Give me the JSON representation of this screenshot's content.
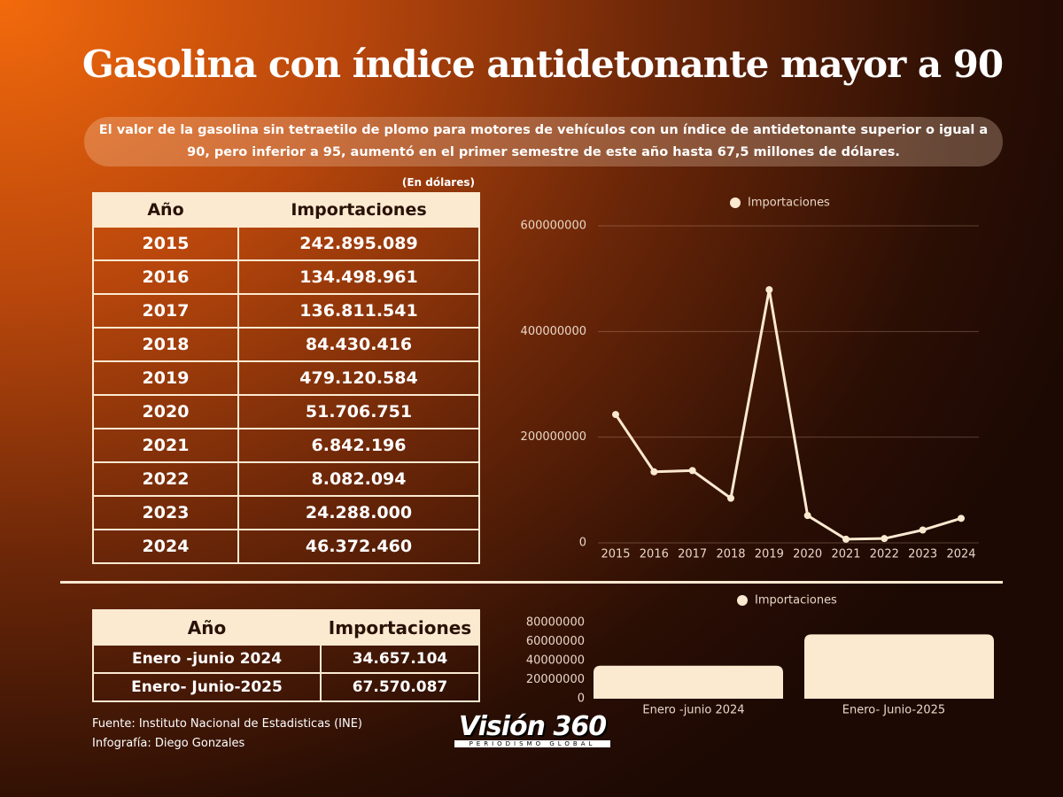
{
  "title": "Gasolina con índice antidetonante mayor a 90",
  "subtitle": "El valor de la gasolina sin tetraetilo de plomo para motores de vehículos con un índice de antidetonante superior o igual a 90, pero inferior a 95, aumentó en el primer semestre de este año hasta 67,5 millones de dólares.",
  "table_main": {
    "unit": "(En dólares)",
    "columns": [
      "Año",
      "Importaciones"
    ],
    "rows": [
      [
        "2015",
        "242.895.089"
      ],
      [
        "2016",
        "134.498.961"
      ],
      [
        "2017",
        "136.811.541"
      ],
      [
        "2018",
        "84.430.416"
      ],
      [
        "2019",
        "479.120.584"
      ],
      [
        "2020",
        "51.706.751"
      ],
      [
        "2021",
        "6.842.196"
      ],
      [
        "2022",
        "8.082.094"
      ],
      [
        "2023",
        "24.288.000"
      ],
      [
        "2024",
        "46.372.460"
      ]
    ]
  },
  "table_semester": {
    "columns": [
      "Año",
      "Importaciones"
    ],
    "rows": [
      [
        "Enero -junio 2024",
        "34.657.104"
      ],
      [
        "Enero- Junio-2025",
        "67.570.087"
      ]
    ]
  },
  "chart_data": [
    {
      "type": "line",
      "categories": [
        "2015",
        "2016",
        "2017",
        "2018",
        "2019",
        "2020",
        "2021",
        "2022",
        "2023",
        "2024"
      ],
      "series": [
        {
          "name": "Importaciones",
          "color": "#fbe9d0",
          "values": [
            242895089,
            134498961,
            136811541,
            84430416,
            479120584,
            51706751,
            6842196,
            8082094,
            24288000,
            46372460
          ]
        }
      ],
      "ylim": [
        0,
        600000000
      ],
      "yticks": [
        0,
        200000000,
        400000000,
        600000000
      ],
      "grid": true,
      "legend": "top"
    },
    {
      "type": "bar",
      "categories": [
        "Enero -junio 2024",
        "Enero- Junio-2025"
      ],
      "series": [
        {
          "name": "Importaciones",
          "color": "#fbe9d0",
          "values": [
            34657104,
            67570087
          ]
        }
      ],
      "ylim": [
        0,
        80000000
      ],
      "yticks": [
        0,
        20000000,
        40000000,
        60000000,
        80000000
      ],
      "grid": false,
      "legend": "top"
    }
  ],
  "footer": {
    "source": "Fuente: Instituto Nacional de Estadisticas (INE)",
    "credit": "Infografía: Diego Gonzales"
  },
  "logo": {
    "name": "Visión 360",
    "tagline": "PERIODISMO GLOBAL"
  }
}
